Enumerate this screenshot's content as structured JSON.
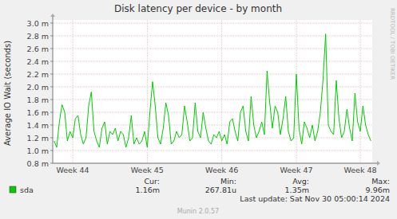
{
  "chart_data": {
    "type": "line",
    "title": "Disk latency per device - by month",
    "y_label": "Average IO Wait (seconds)",
    "watermark": "RRDTOOL / TOBI OETIKER",
    "categories": [
      null,
      null,
      null,
      null,
      null,
      null,
      null,
      "Week 44",
      null,
      null,
      null,
      null,
      null,
      null,
      null,
      null,
      null,
      null,
      null,
      null,
      null,
      null,
      null,
      null,
      null,
      null,
      null,
      null,
      null,
      null,
      null,
      null,
      null,
      null,
      null,
      "Week 45",
      null,
      null,
      null,
      null,
      null,
      null,
      null,
      null,
      null,
      null,
      null,
      null,
      null,
      null,
      null,
      null,
      null,
      null,
      null,
      null,
      null,
      null,
      null,
      null,
      null,
      null,
      null,
      "Week 46",
      null,
      null,
      null,
      null,
      null,
      null,
      null,
      null,
      null,
      null,
      null,
      null,
      null,
      null,
      null,
      null,
      null,
      null,
      null,
      null,
      null,
      null,
      null,
      null,
      null,
      null,
      null,
      "Week 47",
      null,
      null,
      null,
      null,
      null,
      null,
      null,
      null,
      null,
      null,
      null,
      null,
      null,
      null,
      null,
      null,
      null,
      null,
      null,
      null,
      null,
      null,
      null,
      "Week 48",
      null,
      null,
      null,
      null
    ],
    "series": [
      {
        "name": "sda",
        "color": "#00cc00",
        "values": [
          0.00115,
          0.00105,
          0.00145,
          0.00172,
          0.0016,
          0.00115,
          0.0013,
          0.0012,
          0.0015,
          0.00155,
          0.00125,
          0.0011,
          0.0012,
          0.0017,
          0.00192,
          0.0013,
          0.00115,
          0.00105,
          0.00135,
          0.00145,
          0.0011,
          0.0013,
          0.00125,
          0.00135,
          0.00115,
          0.0013,
          0.00125,
          0.00105,
          0.0012,
          0.00155,
          0.0011,
          0.0012,
          0.0011,
          0.00115,
          0.0013,
          0.00105,
          0.0016,
          0.00208,
          0.0017,
          0.0012,
          0.0011,
          0.00135,
          0.00175,
          0.00155,
          0.0011,
          0.00115,
          0.0013,
          0.0012,
          0.00125,
          0.0017,
          0.00145,
          0.00115,
          0.0012,
          0.00175,
          0.0013,
          0.0012,
          0.0016,
          0.00135,
          0.00115,
          0.0011,
          0.00125,
          0.0012,
          0.0013,
          0.00115,
          0.00125,
          0.0011,
          0.00145,
          0.0015,
          0.0013,
          0.00115,
          0.0016,
          0.0017,
          0.0013,
          0.00115,
          0.00185,
          0.0014,
          0.0012,
          0.0013,
          0.00145,
          0.00125,
          0.00225,
          0.00175,
          0.00135,
          0.0017,
          0.0016,
          0.00125,
          0.0015,
          0.00185,
          0.0013,
          0.00115,
          0.0012,
          0.0022,
          0.00135,
          0.0011,
          0.00145,
          0.00135,
          0.0012,
          0.0014,
          0.00115,
          0.0013,
          0.0016,
          0.0021,
          0.00283,
          0.0014,
          0.0013,
          0.00125,
          0.0021,
          0.0015,
          0.0012,
          0.0013,
          0.00165,
          0.00135,
          0.00115,
          0.0019,
          0.00145,
          0.0013,
          0.0017,
          0.0014,
          0.00125,
          0.00115
        ]
      }
    ],
    "ylim": [
      0.0008,
      0.003
    ],
    "yticks": [
      {
        "value": 0.0008,
        "label": "0.8 m"
      },
      {
        "value": 0.001,
        "label": "1.0 m"
      },
      {
        "value": 0.0012,
        "label": "1.2 m"
      },
      {
        "value": 0.0014,
        "label": "1.4 m"
      },
      {
        "value": 0.0016,
        "label": "1.6 m"
      },
      {
        "value": 0.0018,
        "label": "1.8 m"
      },
      {
        "value": 0.002,
        "label": "2.0 m"
      },
      {
        "value": 0.0022,
        "label": "2.2 m"
      },
      {
        "value": 0.0024,
        "label": "2.4 m"
      },
      {
        "value": 0.0026,
        "label": "2.6 m"
      },
      {
        "value": 0.0028,
        "label": "2.8 m"
      },
      {
        "value": 0.003,
        "label": "3.0 m"
      }
    ],
    "grid": true,
    "stats": [
      {
        "label": "Cur:",
        "value": "1.16m"
      },
      {
        "label": "Min:",
        "value": "267.81u"
      },
      {
        "label": "Avg:",
        "value": "1.35m"
      },
      {
        "label": "Max:",
        "value": "9.96m"
      }
    ],
    "last_update": "Last update: Sat Nov 30 05:00:14 2024",
    "footer": "Munin 2.0.57"
  }
}
